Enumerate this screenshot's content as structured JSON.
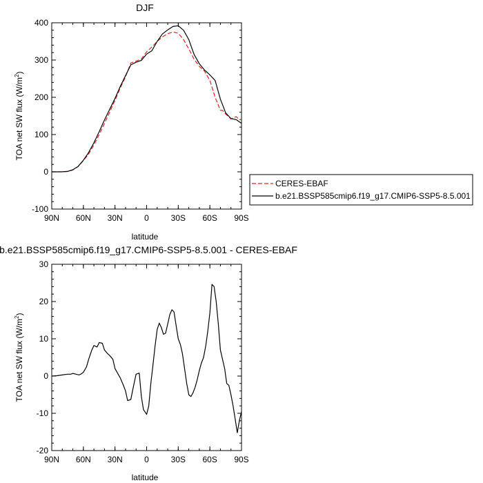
{
  "chart_data": [
    {
      "type": "line",
      "title": "DJF",
      "xlabel": "latitude",
      "ylabel": "TOA net SW flux (W/m",
      "ylabel_sup": "2",
      "ylabel_end": ")",
      "xlim": [
        90,
        -90
      ],
      "ylim": [
        -100,
        400
      ],
      "xticks": [
        90,
        60,
        30,
        0,
        -30,
        -60,
        -90
      ],
      "xtick_labels": [
        "90N",
        "60N",
        "30N",
        "0",
        "30S",
        "60S",
        "90S"
      ],
      "yticks": [
        -100,
        0,
        100,
        200,
        300,
        400
      ],
      "ytick_labels": [
        "-100",
        "0",
        "100",
        "200",
        "300",
        "400"
      ],
      "legend": {
        "placement": "right",
        "entries": [
          {
            "label": "CERES-EBAF",
            "color": "#e62020",
            "dash": true
          },
          {
            "label": "b.e21.BSSP585cmip6.f19_g17.CMIP6-SSP5-8.5.001",
            "color": "#000000",
            "dash": false
          }
        ]
      },
      "series": [
        {
          "name": "CERES-EBAF",
          "color": "#e62020",
          "dash": true,
          "x": [
            90,
            85,
            80,
            75,
            70,
            65,
            60,
            55,
            50,
            45,
            40,
            35,
            30,
            25,
            20,
            15,
            10,
            5,
            0,
            -5,
            -10,
            -15,
            -20,
            -25,
            -30,
            -35,
            -40,
            -45,
            -50,
            -55,
            -60,
            -65,
            -70,
            -72,
            -75,
            -80,
            -85,
            -88,
            -90
          ],
          "y": [
            0,
            0,
            0,
            1,
            5,
            14,
            30,
            48,
            72,
            100,
            130,
            160,
            192,
            225,
            255,
            292,
            297,
            303,
            322,
            335,
            350,
            362,
            371,
            375,
            372,
            355,
            330,
            302,
            283,
            270,
            245,
            200,
            165,
            165,
            155,
            142,
            148,
            140,
            140
          ]
        },
        {
          "name": "b.e21.BSSP585cmip6.f19_g17.CMIP6-SSP5-8.5.001",
          "color": "#000000",
          "dash": false,
          "x": [
            90,
            85,
            80,
            75,
            70,
            65,
            60,
            55,
            50,
            45,
            40,
            35,
            30,
            25,
            20,
            15,
            10,
            5,
            0,
            -5,
            -10,
            -15,
            -20,
            -25,
            -30,
            -35,
            -40,
            -45,
            -50,
            -55,
            -60,
            -65,
            -70,
            -75,
            -80,
            -85,
            -88,
            -90
          ],
          "y": [
            0,
            0,
            0.2,
            1.2,
            5.5,
            14.5,
            31,
            52,
            78,
            108,
            139,
            168,
            197,
            229,
            258,
            287,
            294,
            299,
            316,
            325,
            350,
            370,
            381,
            390,
            392,
            380,
            355,
            315,
            290,
            273,
            260,
            245,
            195,
            158,
            143,
            140,
            134,
            130
          ]
        }
      ]
    },
    {
      "type": "line",
      "title": "b.e21.BSSP585cmip6.f19_g17.CMIP6-SSP5-8.5.001 - CERES-EBAF",
      "xlabel": "latitude",
      "ylabel": "TOA net SW flux (W/m",
      "ylabel_sup": "2",
      "ylabel_end": ")",
      "xlim": [
        90,
        -90
      ],
      "ylim": [
        -20,
        30
      ],
      "xticks": [
        90,
        60,
        30,
        0,
        -30,
        -60,
        -90
      ],
      "xtick_labels": [
        "90N",
        "60N",
        "30N",
        "0",
        "30S",
        "60S",
        "90S"
      ],
      "yticks": [
        -20,
        -10,
        0,
        10,
        20,
        30
      ],
      "ytick_labels": [
        "-20",
        "-10",
        "0",
        "10",
        "20",
        "30"
      ],
      "series": [
        {
          "color": "#000000",
          "x": [
            90,
            85,
            80,
            75,
            72,
            70,
            67,
            64,
            62,
            60,
            57,
            55,
            52,
            50,
            47,
            45,
            42,
            40,
            37,
            35,
            32,
            30,
            28,
            25,
            22,
            20,
            18,
            15,
            13,
            10,
            7,
            5,
            3,
            0,
            -2,
            -4,
            -6,
            -8,
            -10,
            -12,
            -14,
            -16,
            -18,
            -20,
            -22,
            -24,
            -26,
            -28,
            -30,
            -32,
            -34,
            -36,
            -38,
            -40,
            -42,
            -44,
            -46,
            -48,
            -50,
            -52,
            -54,
            -56,
            -58,
            -60,
            -62,
            -64,
            -66,
            -68,
            -70,
            -72,
            -74,
            -76,
            -78,
            -80,
            -82,
            -84,
            -86,
            -88,
            -90
          ],
          "y": [
            0,
            0.1,
            0.3,
            0.5,
            0.5,
            0.7,
            0.5,
            0.3,
            0.6,
            1.0,
            2.5,
            4.5,
            7.0,
            8.2,
            7.8,
            9.0,
            8.8,
            7.0,
            6.0,
            5.5,
            4.5,
            2.0,
            1.0,
            -0.5,
            -2.5,
            -4.0,
            -6.6,
            -6.3,
            -3.5,
            0.5,
            0.8,
            -5.5,
            -9.0,
            -10.3,
            -8.0,
            -2.0,
            3.0,
            8.0,
            12.5,
            14.2,
            13.0,
            11.2,
            11.5,
            14.0,
            16.5,
            17.8,
            17.2,
            13.5,
            10.0,
            8.5,
            6.0,
            2.0,
            -2.0,
            -5.0,
            -5.5,
            -4.5,
            -3.0,
            -1.0,
            1.5,
            3.5,
            5.0,
            8.0,
            12.0,
            17.0,
            24.6,
            24.0,
            20.0,
            14.0,
            7.0,
            4.5,
            2.0,
            -2.0,
            -2.5,
            -5.0,
            -8.0,
            -11.5,
            -15.2,
            -12.0,
            -9.5
          ]
        }
      ]
    }
  ]
}
